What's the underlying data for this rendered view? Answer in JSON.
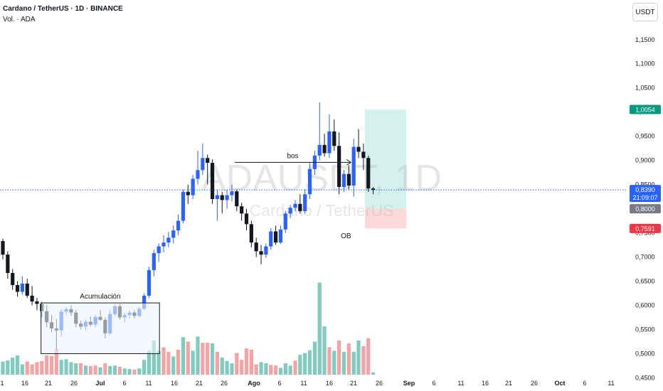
{
  "header": {
    "symbol_line": "Cardano / TetherUS · 1D · BINANCE",
    "volume_line": "Vol. · ADA"
  },
  "currency_button": "USDT",
  "watermark": {
    "ticker": "ADAUSDT, 1D",
    "name": "Cardano / TetherUS"
  },
  "colors": {
    "bull": "#2962ff",
    "bear": "#131722",
    "vol_up": "#7fcbbf",
    "vol_down": "#f3a3a3",
    "target_zone": "#cdeee8",
    "stop_zone": "#fbd1d1",
    "target_label": "#089981",
    "stop_label": "#f23645",
    "price_label": "#2962ff"
  },
  "chart_data": {
    "type": "candlestick",
    "x_ticks": [
      "1",
      "16",
      "21",
      "26",
      "Jul",
      "6",
      "11",
      "16",
      "21",
      "26",
      "Ago",
      "6",
      "11",
      "16",
      "21",
      "26",
      "Sep",
      "6",
      "11",
      "16",
      "21",
      "26",
      "Oct",
      "6",
      "11"
    ],
    "y_ticks": [
      "1,1500",
      "1,1000",
      "1,0500",
      "1,0000",
      "0,9500",
      "0,9000",
      "0,8500",
      "0,8000",
      "0,7500",
      "0,7000",
      "0,6500",
      "0,6000",
      "0,5500",
      "0,5000",
      "0,4500"
    ],
    "ylim": [
      0.43,
      1.21
    ],
    "ohlc": [
      [
        0.733,
        0.738,
        0.695,
        0.705
      ],
      [
        0.705,
        0.712,
        0.655,
        0.667
      ],
      [
        0.667,
        0.675,
        0.632,
        0.642
      ],
      [
        0.642,
        0.65,
        0.618,
        0.628
      ],
      [
        0.628,
        0.66,
        0.622,
        0.645
      ],
      [
        0.645,
        0.655,
        0.615,
        0.62
      ],
      [
        0.62,
        0.64,
        0.6,
        0.608
      ],
      [
        0.608,
        0.615,
        0.59,
        0.603
      ],
      [
        0.603,
        0.607,
        0.575,
        0.588
      ],
      [
        0.588,
        0.6,
        0.555,
        0.565
      ],
      [
        0.565,
        0.58,
        0.545,
        0.552
      ],
      [
        0.552,
        0.572,
        0.508,
        0.548
      ],
      [
        0.548,
        0.592,
        0.535,
        0.587
      ],
      [
        0.587,
        0.597,
        0.58,
        0.592
      ],
      [
        0.592,
        0.6,
        0.578,
        0.585
      ],
      [
        0.585,
        0.59,
        0.555,
        0.562
      ],
      [
        0.562,
        0.568,
        0.55,
        0.556
      ],
      [
        0.556,
        0.57,
        0.548,
        0.566
      ],
      [
        0.566,
        0.577,
        0.556,
        0.56
      ],
      [
        0.56,
        0.58,
        0.555,
        0.576
      ],
      [
        0.576,
        0.59,
        0.568,
        0.57
      ],
      [
        0.57,
        0.575,
        0.532,
        0.542
      ],
      [
        0.542,
        0.59,
        0.538,
        0.582
      ],
      [
        0.582,
        0.602,
        0.578,
        0.598
      ],
      [
        0.598,
        0.603,
        0.57,
        0.575
      ],
      [
        0.575,
        0.585,
        0.565,
        0.58
      ],
      [
        0.58,
        0.59,
        0.572,
        0.585
      ],
      [
        0.585,
        0.59,
        0.572,
        0.578
      ],
      [
        0.578,
        0.597,
        0.575,
        0.593
      ],
      [
        0.593,
        0.625,
        0.59,
        0.62
      ],
      [
        0.62,
        0.68,
        0.615,
        0.673
      ],
      [
        0.673,
        0.715,
        0.66,
        0.708
      ],
      [
        0.708,
        0.728,
        0.69,
        0.722
      ],
      [
        0.722,
        0.745,
        0.71,
        0.73
      ],
      [
        0.73,
        0.752,
        0.72,
        0.74
      ],
      [
        0.74,
        0.765,
        0.728,
        0.755
      ],
      [
        0.755,
        0.788,
        0.745,
        0.775
      ],
      [
        0.775,
        0.84,
        0.77,
        0.835
      ],
      [
        0.835,
        0.85,
        0.81,
        0.828
      ],
      [
        0.828,
        0.87,
        0.82,
        0.862
      ],
      [
        0.862,
        0.92,
        0.85,
        0.88
      ],
      [
        0.88,
        0.935,
        0.87,
        0.905
      ],
      [
        0.905,
        0.912,
        0.85,
        0.895
      ],
      [
        0.895,
        0.902,
        0.81,
        0.82
      ],
      [
        0.82,
        0.84,
        0.775,
        0.828
      ],
      [
        0.828,
        0.835,
        0.79,
        0.818
      ],
      [
        0.818,
        0.84,
        0.8,
        0.828
      ],
      [
        0.828,
        0.85,
        0.815,
        0.836
      ],
      [
        0.836,
        0.84,
        0.795,
        0.805
      ],
      [
        0.805,
        0.812,
        0.775,
        0.79
      ],
      [
        0.79,
        0.8,
        0.755,
        0.768
      ],
      [
        0.768,
        0.775,
        0.72,
        0.73
      ],
      [
        0.73,
        0.74,
        0.7,
        0.712
      ],
      [
        0.712,
        0.725,
        0.685,
        0.705
      ],
      [
        0.705,
        0.728,
        0.698,
        0.722
      ],
      [
        0.722,
        0.76,
        0.715,
        0.753
      ],
      [
        0.753,
        0.765,
        0.725,
        0.73
      ],
      [
        0.73,
        0.765,
        0.727,
        0.757
      ],
      [
        0.757,
        0.795,
        0.75,
        0.79
      ],
      [
        0.79,
        0.808,
        0.78,
        0.802
      ],
      [
        0.802,
        0.818,
        0.795,
        0.81
      ],
      [
        0.81,
        0.83,
        0.79,
        0.795
      ],
      [
        0.795,
        0.84,
        0.79,
        0.83
      ],
      [
        0.83,
        0.895,
        0.82,
        0.882
      ],
      [
        0.882,
        0.92,
        0.87,
        0.91
      ],
      [
        0.91,
        1.02,
        0.9,
        0.932
      ],
      [
        0.932,
        0.955,
        0.908,
        0.915
      ],
      [
        0.915,
        0.995,
        0.905,
        0.96
      ],
      [
        0.96,
        0.985,
        0.92,
        0.93
      ],
      [
        0.93,
        0.958,
        0.83,
        0.845
      ],
      [
        0.845,
        0.88,
        0.835,
        0.872
      ],
      [
        0.872,
        0.89,
        0.84,
        0.848
      ],
      [
        0.848,
        0.945,
        0.825,
        0.928
      ],
      [
        0.928,
        0.965,
        0.905,
        0.918
      ],
      [
        0.918,
        0.935,
        0.88,
        0.905
      ],
      [
        0.905,
        0.91,
        0.835,
        0.842
      ],
      [
        0.842,
        0.845,
        0.83,
        0.839
      ]
    ],
    "volume": [
      [
        0.023,
        0
      ],
      [
        0.025,
        0
      ],
      [
        0.03,
        0
      ],
      [
        0.034,
        0
      ],
      [
        0.018,
        0
      ],
      [
        0.023,
        1
      ],
      [
        0.018,
        1
      ],
      [
        0.022,
        1
      ],
      [
        0.024,
        1
      ],
      [
        0.034,
        1
      ],
      [
        0.033,
        1
      ],
      [
        0.045,
        1
      ],
      [
        0.026,
        0
      ],
      [
        0.027,
        0
      ],
      [
        0.022,
        0
      ],
      [
        0.02,
        0
      ],
      [
        0.02,
        1
      ],
      [
        0.016,
        0
      ],
      [
        0.015,
        1
      ],
      [
        0.016,
        1
      ],
      [
        0.013,
        0
      ],
      [
        0.02,
        1
      ],
      [
        0.015,
        0
      ],
      [
        0.016,
        0
      ],
      [
        0.014,
        1
      ],
      [
        0.011,
        0
      ],
      [
        0.01,
        0
      ],
      [
        0.009,
        1
      ],
      [
        0.011,
        0
      ],
      [
        0.026,
        0
      ],
      [
        0.042,
        0
      ],
      [
        0.06,
        0
      ],
      [
        0.042,
        0
      ],
      [
        0.048,
        1
      ],
      [
        0.04,
        1
      ],
      [
        0.032,
        0
      ],
      [
        0.044,
        1
      ],
      [
        0.066,
        0
      ],
      [
        0.058,
        1
      ],
      [
        0.042,
        0
      ],
      [
        0.067,
        0
      ],
      [
        0.056,
        1
      ],
      [
        0.056,
        1
      ],
      [
        0.055,
        0
      ],
      [
        0.04,
        1
      ],
      [
        0.03,
        0
      ],
      [
        0.024,
        0
      ],
      [
        0.02,
        0
      ],
      [
        0.038,
        1
      ],
      [
        0.026,
        1
      ],
      [
        0.046,
        1
      ],
      [
        0.044,
        1
      ],
      [
        0.018,
        1
      ],
      [
        0.022,
        0
      ],
      [
        0.02,
        0
      ],
      [
        0.017,
        1
      ],
      [
        0.016,
        1
      ],
      [
        0.012,
        0
      ],
      [
        0.02,
        0
      ],
      [
        0.016,
        0
      ],
      [
        0.025,
        1
      ],
      [
        0.035,
        0
      ],
      [
        0.038,
        0
      ],
      [
        0.043,
        0
      ],
      [
        0.058,
        0
      ],
      [
        0.162,
        0
      ],
      [
        0.085,
        0
      ],
      [
        0.048,
        1
      ],
      [
        0.042,
        0
      ],
      [
        0.06,
        1
      ],
      [
        0.04,
        0
      ],
      [
        0.055,
        1
      ],
      [
        0.04,
        0
      ],
      [
        0.06,
        0
      ],
      [
        0.05,
        1
      ],
      [
        0.064,
        1
      ],
      [
        0.004,
        0
      ]
    ],
    "annotations": [
      {
        "text": "Acumulación",
        "type": "range-box",
        "from_bar": 9,
        "to_bar": 32,
        "price_top": 0.605,
        "price_bottom": 0.5
      },
      {
        "text": "bos",
        "type": "arrow",
        "from_bar": 48,
        "to_bar": 72,
        "price": 0.896
      },
      {
        "text": "OB",
        "type": "label",
        "bar": 71,
        "price": 0.745
      }
    ],
    "position": {
      "entry": 0.8,
      "target": 1.0054,
      "stop": 0.7591
    },
    "last_price": 0.839,
    "price_labels": [
      {
        "text": "1,0054",
        "kind": "target"
      },
      {
        "text": "0,8390",
        "sub": "21:09:07",
        "kind": "last"
      },
      {
        "text": "0,8000",
        "kind": "entry"
      },
      {
        "text": "0,7591",
        "kind": "stop"
      }
    ]
  }
}
